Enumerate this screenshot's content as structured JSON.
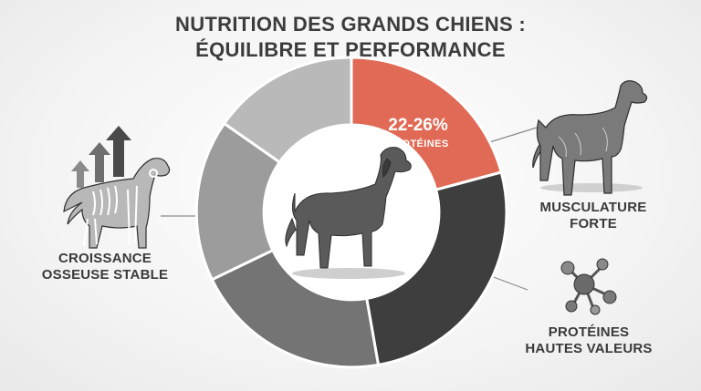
{
  "title": {
    "line1": "NUTRITION DES GRANDS CHIENS :",
    "line2": "ÉQUILIBRE ET PERFORMANCE"
  },
  "protein_segment": {
    "value": "22-26%",
    "label": "PROTÉINES"
  },
  "labels": {
    "growth_line1": "CROISSANCE",
    "growth_line2": "OSSEUSE STABLE",
    "muscle_line1": "MUSCULATURE",
    "muscle_line2": "FORTE",
    "protein_hv_line1": "PROTÉINES",
    "protein_hv_line2": "HAUTES VALEURS"
  },
  "colors": {
    "accent": "#e06a55",
    "dark": "#3e3e3e",
    "mid": "#747474",
    "light_gray": "#9c9c9c",
    "lighter_gray": "#b9b9b9"
  },
  "icons": {
    "growth": "skeleton-dog-icon",
    "arrows": "growth-arrows-icon",
    "muscle": "muscular-dog-icon",
    "molecule": "molecule-icon",
    "center": "standing-dog-icon"
  }
}
